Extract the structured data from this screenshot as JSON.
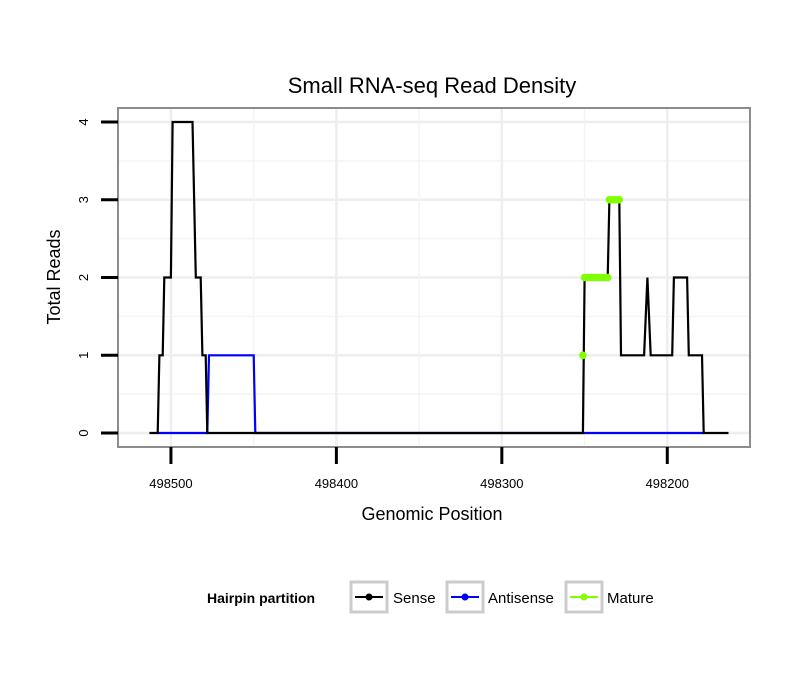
{
  "chart_data": {
    "type": "line",
    "title": "Small RNA-seq Read Density",
    "xlabel": "Genomic Position",
    "ylabel": "Total Reads",
    "x_reversed": true,
    "xlim": [
      498532,
      498150
    ],
    "ylim": [
      -0.18,
      4.18
    ],
    "x_ticks": [
      498500,
      498400,
      498300,
      498200
    ],
    "x_tick_labels": [
      "498500",
      "498400",
      "498300",
      "498200"
    ],
    "y_ticks": [
      0,
      1,
      2,
      3,
      4
    ],
    "y_tick_labels": [
      "0",
      "1",
      "2",
      "3",
      "4"
    ],
    "grid": true,
    "legend_position": "bottom",
    "legend_title": "Hairpin partition",
    "series": [
      {
        "name": "Sense",
        "color": "#000000",
        "style": "line",
        "points": [
          [
            498513,
            0
          ],
          [
            498508,
            0
          ],
          [
            498507,
            1
          ],
          [
            498505,
            1
          ],
          [
            498504,
            2
          ],
          [
            498500,
            2
          ],
          [
            498499,
            4
          ],
          [
            498487,
            4
          ],
          [
            498485,
            2
          ],
          [
            498482,
            2
          ],
          [
            498481,
            1
          ],
          [
            498479,
            1
          ],
          [
            498478,
            0
          ],
          [
            498251,
            0
          ],
          [
            498250,
            2
          ],
          [
            498236,
            2
          ],
          [
            498235,
            3
          ],
          [
            498229,
            3
          ],
          [
            498228,
            1
          ],
          [
            498214,
            1
          ],
          [
            498212,
            2
          ],
          [
            498210,
            1
          ],
          [
            498197,
            1
          ],
          [
            498196,
            2
          ],
          [
            498188,
            2
          ],
          [
            498187,
            1
          ],
          [
            498179,
            1
          ],
          [
            498178,
            0
          ],
          [
            498163,
            0
          ]
        ]
      },
      {
        "name": "Antisense",
        "color": "#0000ff",
        "style": "line",
        "points": [
          [
            498508,
            0
          ],
          [
            498478,
            0
          ],
          [
            498477,
            1
          ],
          [
            498450,
            1
          ],
          [
            498449,
            0
          ],
          [
            498251,
            0
          ],
          [
            498178,
            0
          ]
        ]
      },
      {
        "name": "Mature",
        "color": "#7fff00",
        "style": "points",
        "points": [
          [
            498251,
            1
          ],
          [
            498250,
            2
          ],
          [
            498248,
            2
          ],
          [
            498246,
            2
          ],
          [
            498244,
            2
          ],
          [
            498242,
            2
          ],
          [
            498240,
            2
          ],
          [
            498238,
            2
          ],
          [
            498236,
            2
          ],
          [
            498235,
            3
          ],
          [
            498233,
            3
          ],
          [
            498231,
            3
          ],
          [
            498229,
            3
          ]
        ]
      }
    ]
  }
}
